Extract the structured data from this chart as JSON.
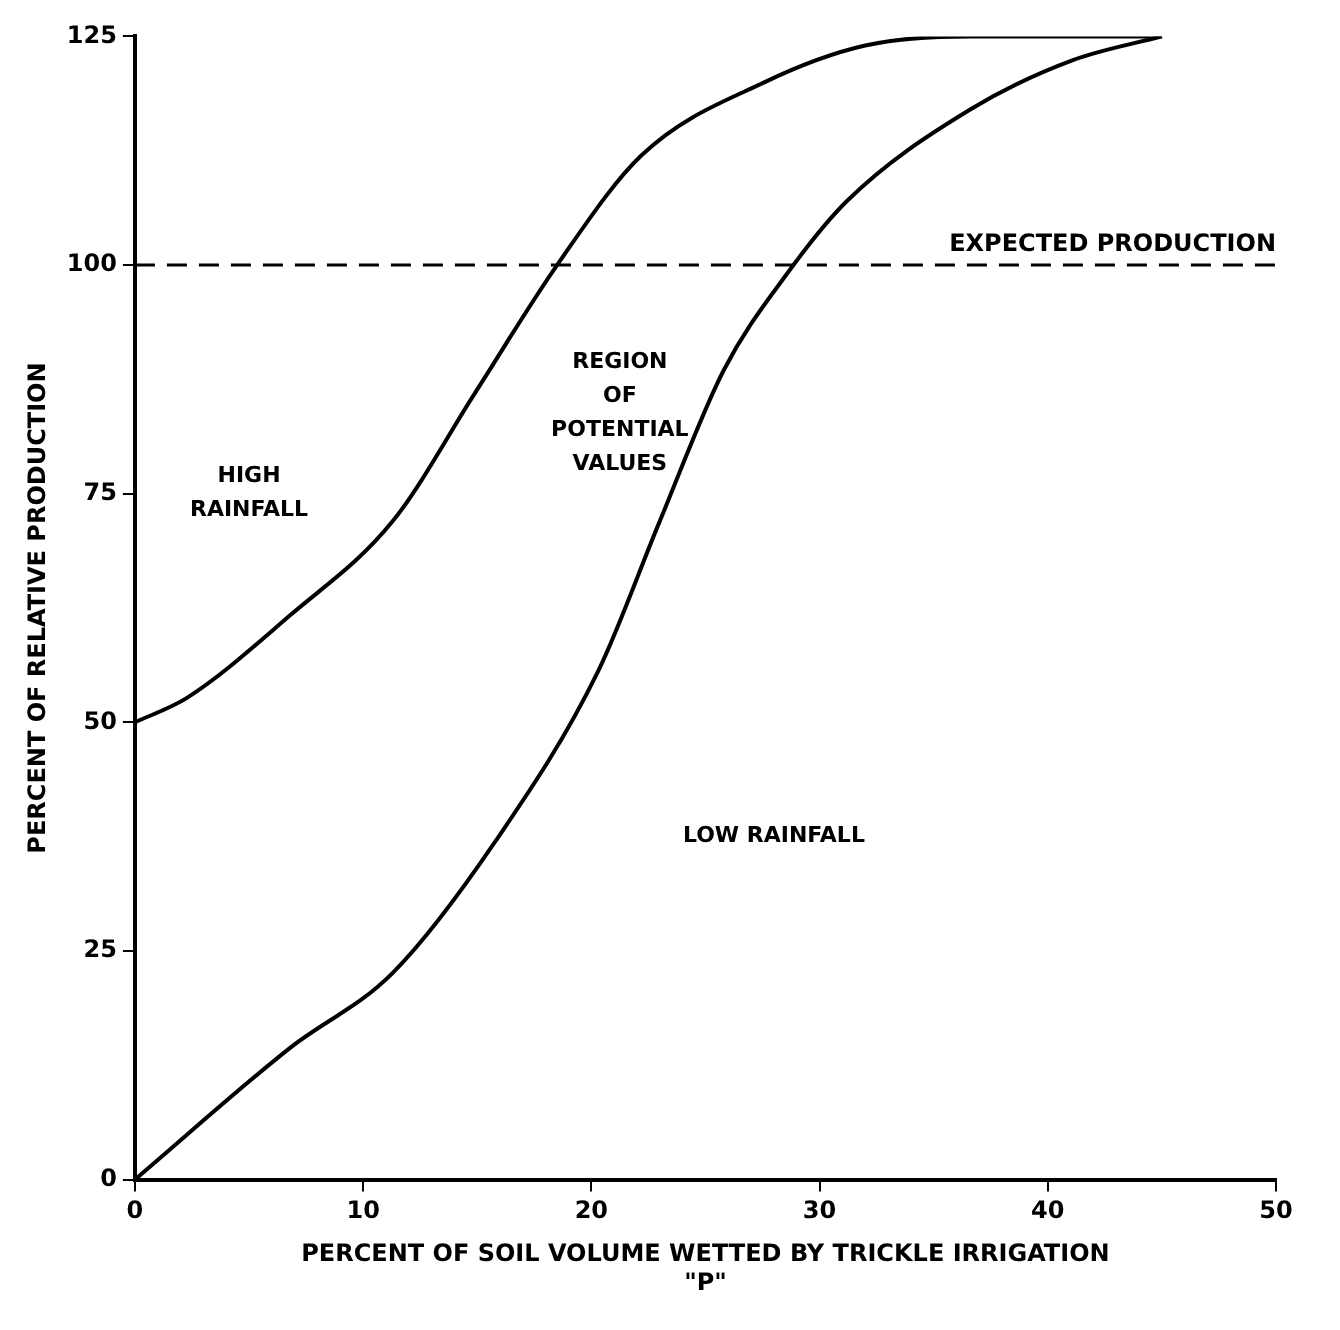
{
  "chart_data": {
    "type": "line",
    "xlabel": "PERCENT OF SOIL VOLUME WETTED BY TRICKLE IRRIGATION\n\"P\"",
    "ylabel": "PERCENT OF RELATIVE PRODUCTION",
    "xlim": [
      0,
      50
    ],
    "xticks": [
      0,
      10,
      20,
      30,
      40,
      50
    ],
    "ylim": [
      0,
      125
    ],
    "yticks": [
      0,
      25,
      50,
      75,
      100,
      125
    ],
    "grid": false,
    "legend": false,
    "marker": "none",
    "line_style": "solid",
    "series": [
      {
        "color": "#000000",
        "x": [
          0,
          2.3,
          6.8,
          11.3,
          14.9,
          18.5,
          22.2,
          27.6,
          32,
          36.6,
          45
        ],
        "values": [
          50,
          52.7,
          61.7,
          72,
          86,
          100,
          112,
          120,
          124,
          125,
          125
        ]
      },
      {
        "color": "#000000",
        "x": [
          0,
          6.8,
          11.3,
          15.8,
          20.3,
          23,
          25.8,
          28.5,
          31.2,
          36.6,
          41.1,
          45
        ],
        "values": [
          0,
          14.4,
          22.6,
          37,
          55.6,
          72,
          88.5,
          98.8,
          107,
          117,
          122.4,
          125
        ]
      }
    ],
    "ref_lines": [
      {
        "axis": "y",
        "value": 100,
        "label": "EXPECTED PRODUCTION",
        "color": "#000000",
        "line_style": "dashed"
      }
    ],
    "annotations": [
      "HIGH\nRAINFALL",
      "REGION\nOF\nPOTENTIAL\nVALUES",
      "LOW RAINFALL"
    ]
  }
}
